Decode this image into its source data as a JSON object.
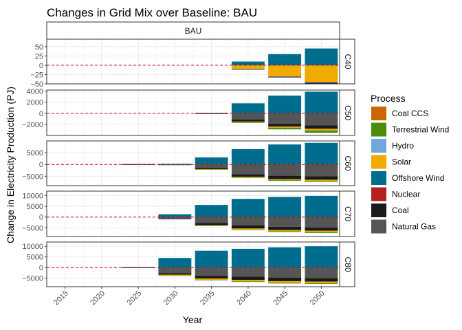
{
  "chart_data": {
    "type": "bar",
    "title": "Changes in Grid Mix over Baseline: BAU",
    "xlabel": "Year",
    "ylabel": "Change in Electricity Production (PJ)",
    "column_strip": "BAU",
    "years": [
      "2015",
      "2020",
      "2025",
      "2030",
      "2035",
      "2040",
      "2045",
      "2050"
    ],
    "legend": {
      "title": "Process",
      "position": "right",
      "items": [
        {
          "name": "Coal CCS",
          "color": "#CC6600"
        },
        {
          "name": "Terrestrial Wind",
          "color": "#4B8C0B"
        },
        {
          "name": "Hydro",
          "color": "#6FA8DC"
        },
        {
          "name": "Solar",
          "color": "#F0AA00"
        },
        {
          "name": "Offshore Wind",
          "color": "#006D8F"
        },
        {
          "name": "Nuclear",
          "color": "#B22222"
        },
        {
          "name": "Coal",
          "color": "#1A1A1A"
        },
        {
          "name": "Natural Gas",
          "color": "#555555"
        }
      ]
    },
    "baseline_line": {
      "y": 0,
      "color": "#CC0000",
      "style": "dashed"
    },
    "panels": [
      {
        "label": "C40",
        "ylim": [
          -50,
          70
        ],
        "yticks": [
          50,
          25,
          0,
          -25,
          -50
        ],
        "series": {
          "Offshore Wind": [
            0,
            0,
            0,
            0,
            0,
            10,
            30,
            45
          ],
          "Nuclear": [
            0,
            0,
            0,
            0,
            0,
            0,
            0,
            0
          ],
          "Solar": [
            0,
            0,
            0,
            0,
            0,
            -10,
            -30,
            -45
          ],
          "Natural Gas": [
            0,
            0,
            0,
            0,
            0,
            -1,
            -2,
            -3
          ],
          "Coal": [
            0,
            0,
            0,
            0,
            0,
            -1,
            -1,
            -2
          ]
        }
      },
      {
        "label": "C50",
        "ylim": [
          -4000,
          4200
        ],
        "yticks": [
          4000,
          2000,
          0,
          -2000
        ],
        "series": {
          "Offshore Wind": [
            0,
            0,
            0,
            0,
            100,
            1800,
            3200,
            3900
          ],
          "Nuclear": [
            0,
            0,
            0,
            0,
            0,
            0,
            0,
            0
          ],
          "Natural Gas": [
            0,
            0,
            0,
            0,
            -60,
            -1100,
            -1900,
            -2200
          ],
          "Coal": [
            0,
            0,
            0,
            0,
            -20,
            -400,
            -500,
            -600
          ],
          "Solar": [
            0,
            0,
            0,
            0,
            0,
            -100,
            -200,
            -300
          ],
          "Terrestrial Wind": [
            0,
            0,
            0,
            0,
            0,
            -150,
            -300,
            -400
          ]
        }
      },
      {
        "label": "C60",
        "ylim": [
          -9000,
          10000
        ],
        "yticks": [
          5000,
          0,
          -5000
        ],
        "series": {
          "Offshore Wind": [
            0,
            0,
            200,
            300,
            3000,
            6500,
            8500,
            9200
          ],
          "Nuclear": [
            0,
            0,
            0,
            0,
            0,
            0,
            0,
            0
          ],
          "Natural Gas": [
            0,
            0,
            -100,
            -150,
            -1500,
            -4200,
            -4800,
            -5000
          ],
          "Coal": [
            0,
            0,
            -50,
            -100,
            -500,
            -1000,
            -1500,
            -1500
          ],
          "Solar": [
            0,
            0,
            0,
            0,
            -100,
            -300,
            -400,
            -500
          ],
          "Terrestrial Wind": [
            0,
            0,
            0,
            0,
            -50,
            -200,
            -300,
            -400
          ]
        }
      },
      {
        "label": "C70",
        "ylim": [
          -9000,
          12000
        ],
        "yticks": [
          10000,
          5000,
          0,
          -5000
        ],
        "series": {
          "Offshore Wind": [
            0,
            0,
            0,
            1300,
            5600,
            8400,
            9300,
            9800
          ],
          "Nuclear": [
            0,
            0,
            0,
            0,
            0,
            0,
            0,
            0
          ],
          "Natural Gas": [
            0,
            0,
            0,
            -700,
            -2800,
            -3800,
            -4500,
            -4800
          ],
          "Coal": [
            0,
            0,
            0,
            -300,
            -1000,
            -1500,
            -1500,
            -1500
          ],
          "Solar": [
            0,
            0,
            0,
            0,
            -200,
            -500,
            -600,
            -700
          ],
          "Terrestrial Wind": [
            0,
            0,
            0,
            0,
            -50,
            -200,
            -300,
            -400
          ]
        }
      },
      {
        "label": "C80",
        "ylim": [
          -9000,
          12000
        ],
        "yticks": [
          10000,
          5000,
          0,
          -5000
        ],
        "series": {
          "Offshore Wind": [
            0,
            0,
            200,
            4500,
            7900,
            8800,
            9500,
            10000
          ],
          "Nuclear": [
            0,
            0,
            0,
            0,
            0,
            0,
            0,
            0
          ],
          "Natural Gas": [
            0,
            0,
            -100,
            -2600,
            -4000,
            -4300,
            -4800,
            -5000
          ],
          "Coal": [
            0,
            0,
            -50,
            -800,
            -1200,
            -1500,
            -1600,
            -1600
          ],
          "Solar": [
            0,
            0,
            0,
            -400,
            -600,
            -700,
            -800,
            -800
          ],
          "Terrestrial Wind": [
            0,
            0,
            0,
            -100,
            -200,
            -300,
            -300,
            -300
          ]
        }
      }
    ]
  }
}
